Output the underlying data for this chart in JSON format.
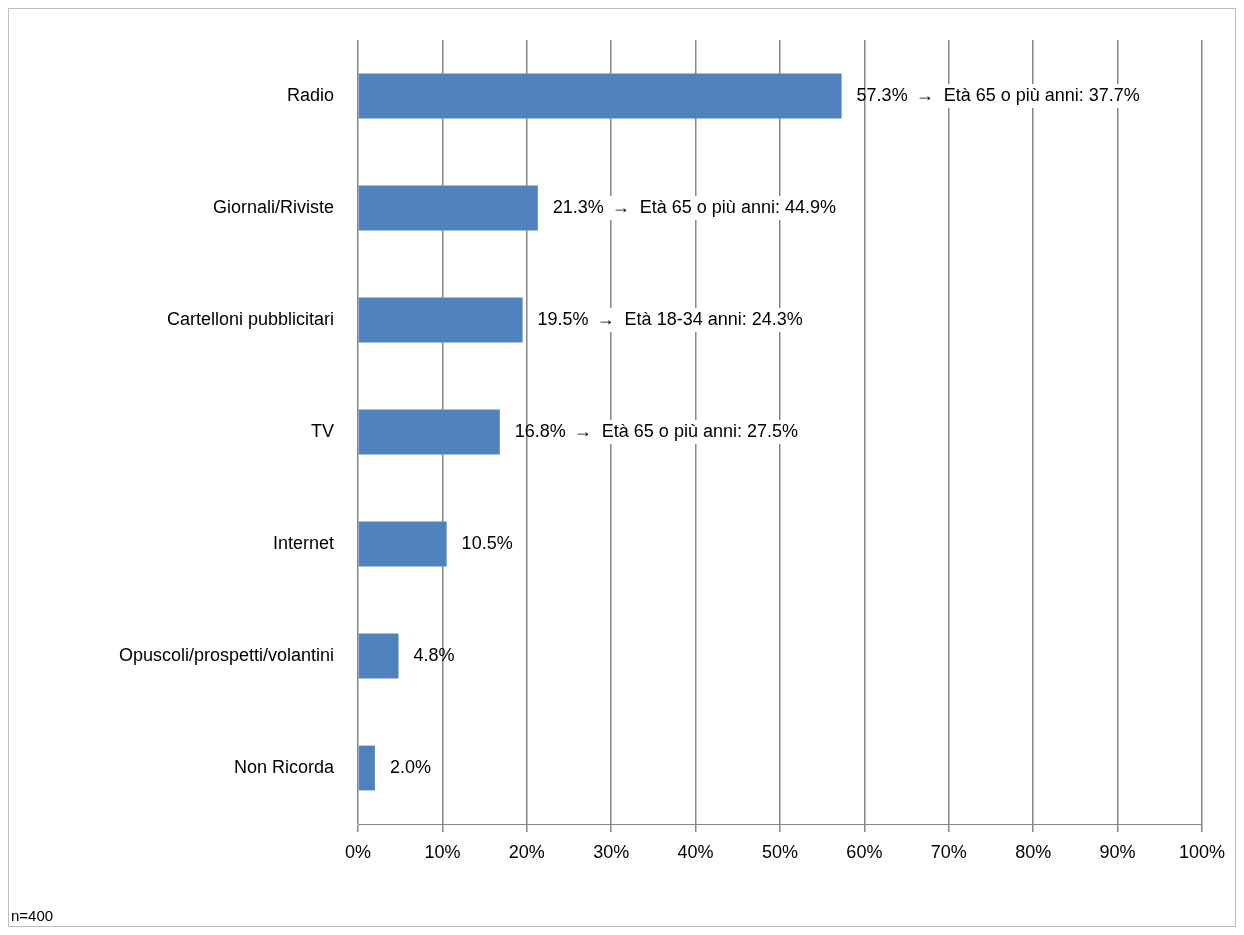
{
  "chart_data": {
    "type": "bar",
    "orientation": "horizontal",
    "categories": [
      "Radio",
      "Giornali/Riviste",
      "Cartelloni pubblicitari",
      "TV",
      "Internet",
      "Opuscoli/prospetti/volantini",
      "Non Ricorda"
    ],
    "values": [
      57.3,
      21.3,
      19.5,
      16.8,
      10.5,
      4.8,
      2.0
    ],
    "value_labels": [
      "57.3%",
      "21.3%",
      "19.5%",
      "16.8%",
      "10.5%",
      "4.8%",
      "2.0%"
    ],
    "color": "#4f81bd",
    "xlim": [
      0,
      100
    ],
    "xticks": [
      {
        "value": 0,
        "label": "0%"
      },
      {
        "value": 10,
        "label": "10%"
      },
      {
        "value": 20,
        "label": "20%"
      },
      {
        "value": 30,
        "label": "30%"
      },
      {
        "value": 40,
        "label": "40%"
      },
      {
        "value": 50,
        "label": "50%"
      },
      {
        "value": 60,
        "label": "60%"
      },
      {
        "value": 70,
        "label": "70%"
      },
      {
        "value": 80,
        "label": "80%"
      },
      {
        "value": 90,
        "label": "90%"
      },
      {
        "value": 100,
        "label": "100%"
      }
    ],
    "grid": "x",
    "legend": false,
    "annotations": [
      "→  Età 65 o più anni: 37.7%",
      "→  Età 65 o più anni: 44.9%",
      "→  Età 18-34 anni: 24.3%",
      "→  Età 65 o più anni: 27.5%",
      "n=400"
    ]
  }
}
